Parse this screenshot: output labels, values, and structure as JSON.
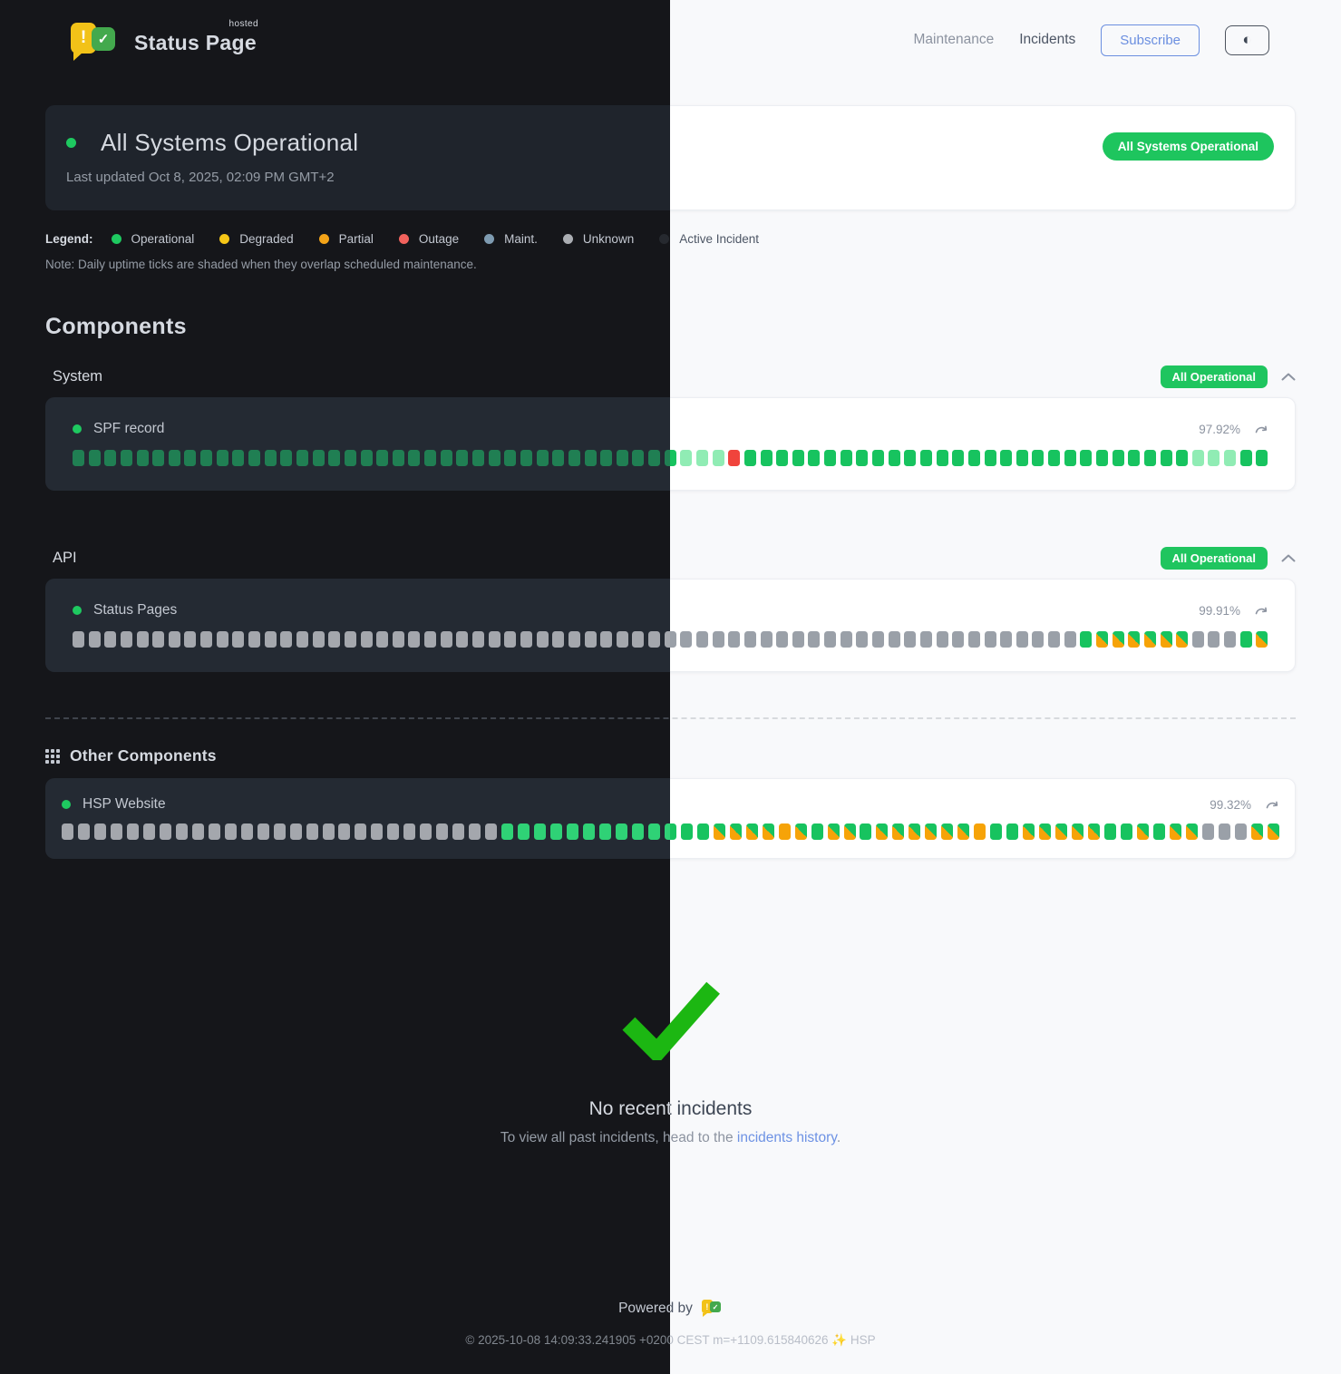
{
  "brand": {
    "name": "Status Page",
    "superscript": "hosted",
    "logo_exclaim": "!",
    "logo_check": "✓"
  },
  "nav": {
    "maintenance": "Maintenance",
    "incidents": "Incidents",
    "subscribe": "Subscribe",
    "theme_toggle_icon": "◐"
  },
  "overall_status": {
    "title": "All Systems Operational",
    "last_updated": "Last updated Oct 8, 2025, 02:09 PM GMT+2",
    "badge": "All Systems Operational"
  },
  "legend": {
    "label": "Legend:",
    "items": [
      {
        "label": "Operational",
        "color": "#1ec960"
      },
      {
        "label": "Degraded",
        "color": "#f6c717"
      },
      {
        "label": "Partial",
        "color": "#f4a418"
      },
      {
        "label": "Outage",
        "color": "#f2625d"
      },
      {
        "label": "Maint.",
        "color": "#7e9bb1"
      },
      {
        "label": "Unknown",
        "color": "#abaeb3"
      },
      {
        "label": "Active Incident",
        "color": "#26292f"
      }
    ],
    "note": "Note: Daily uptime ticks are shaded when they overlap scheduled maintenance."
  },
  "components": {
    "title": "Components",
    "tick_legend": {
      "o": "operational",
      "s": "operational-maintenance-shaded",
      "x": "outage",
      "u": "unknown",
      "p": "operational-partial-shaded",
      "f": "partial"
    },
    "groups": [
      {
        "name": "System",
        "badge": "All Operational",
        "rows": [
          {
            "name": "SPF record",
            "uptime": "97.92%",
            "ticks": "oooooooooooooooooooooooooooooooooooooosssxoooooooooooooooooooooooooooosssoo"
          }
        ]
      },
      {
        "name": "API",
        "badge": "All Operational",
        "rows": [
          {
            "name": "Status Pages",
            "uptime": "99.91%",
            "ticks": "uuuuuuuuuuuuuuuuuuuuuuuuuuuuuuuuuuuuuuuuuuuuuuuuuuuuuuuuuuuuuuuoppppppuuuop"
          }
        ]
      }
    ],
    "other": {
      "title": "Other Components",
      "rows": [
        {
          "name": "HSP Website",
          "uptime": "99.32%",
          "ticks": "uuuuuuuuuuuuuuuuuuuuuuuuuuuooooooooooooopppp fpoppoppppppfoopppppoopoppuuupp"
        }
      ]
    }
  },
  "incidents_section": {
    "title": "No recent incidents",
    "text_prefix": "To view all past incidents, head to the ",
    "link_text": "incidents history",
    "text_suffix": "."
  },
  "footer": {
    "powered_by": "Powered by",
    "copyright": "© 2025-10-08 14:09:33.241905 +0200 CEST m=+1109.615840626 ✨ HSP"
  },
  "colors": {
    "accent_green": "#1ec55e",
    "tick_operational_light": "#17c35f",
    "tick_operational_dark": "#207f53",
    "tick_shaded": "#90ecb4",
    "tick_outage": "#f0443c",
    "tick_unknown": "#9aa0a8",
    "tick_partial_orange": "#f6a308",
    "link_blue": "#6d92e4",
    "check_green": "#1cb712",
    "logo_yellow": "#f2c218",
    "logo_green": "#43a94d"
  }
}
